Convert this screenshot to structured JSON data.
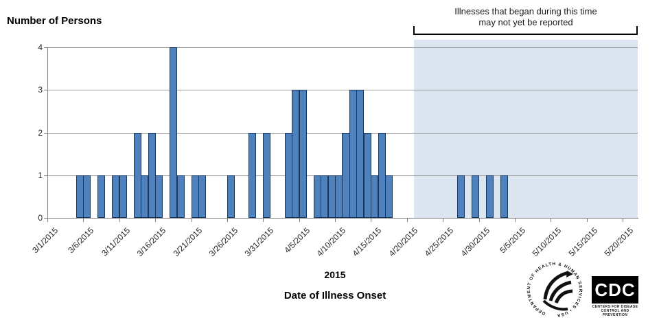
{
  "y_axis_title": "Number of Persons",
  "annotation": {
    "line1": "Illnesses that began during this time",
    "line2": "may not yet be reported"
  },
  "x_axis": {
    "tick_labels": [
      "3/1/2015",
      "3/6/2015",
      "3/11/2015",
      "3/16/2015",
      "3/21/2015",
      "3/26/2015",
      "3/31/2015",
      "4/5/2015",
      "4/10/2015",
      "4/15/2015",
      "4/20/2015",
      "4/25/2015",
      "4/30/2015",
      "5/5/2015",
      "5/10/2015",
      "5/15/2015",
      "5/20/2015"
    ],
    "year_label": "2015",
    "title": "Date of Illness Onset"
  },
  "y_axis": {
    "tick_labels": [
      "0",
      "1",
      "2",
      "3",
      "4"
    ]
  },
  "footer": {
    "cdc_logo_text": "CDC",
    "cdc_caption_line1": "CENTERS FOR DISEASE",
    "cdc_caption_line2": "CONTROL AND PREVENTION",
    "hhs_seal_text": "DEPARTMENT OF HEALTH & HUMAN SERVICES • USA"
  },
  "colors": {
    "bar_fill": "#4F81BD",
    "bar_border": "#17375E",
    "shaded_region": "#DCE6F1",
    "gridline": "#999999",
    "axis": "#808080",
    "tick_label": "#262626"
  },
  "chart_data": {
    "type": "bar",
    "title": "",
    "xlabel": "Date of Illness Onset",
    "ylabel": "Number of Persons",
    "x_start_date": "3/1/2015",
    "x_end_date": "5/22/2015",
    "ylim": [
      0,
      4
    ],
    "grid": true,
    "bar_unit": "1 bar = 1 day",
    "bars": [
      {
        "date": "3/5/2015",
        "value": 1
      },
      {
        "date": "3/6/2015",
        "value": 1
      },
      {
        "date": "3/8/2015",
        "value": 1
      },
      {
        "date": "3/10/2015",
        "value": 1
      },
      {
        "date": "3/11/2015",
        "value": 1
      },
      {
        "date": "3/13/2015",
        "value": 2
      },
      {
        "date": "3/14/2015",
        "value": 1
      },
      {
        "date": "3/15/2015",
        "value": 2
      },
      {
        "date": "3/16/2015",
        "value": 1
      },
      {
        "date": "3/18/2015",
        "value": 4
      },
      {
        "date": "3/19/2015",
        "value": 1
      },
      {
        "date": "3/21/2015",
        "value": 1
      },
      {
        "date": "3/22/2015",
        "value": 1
      },
      {
        "date": "3/26/2015",
        "value": 1
      },
      {
        "date": "3/29/2015",
        "value": 2
      },
      {
        "date": "3/31/2015",
        "value": 2
      },
      {
        "date": "4/3/2015",
        "value": 2
      },
      {
        "date": "4/4/2015",
        "value": 3
      },
      {
        "date": "4/5/2015",
        "value": 3
      },
      {
        "date": "4/7/2015",
        "value": 1
      },
      {
        "date": "4/8/2015",
        "value": 1
      },
      {
        "date": "4/9/2015",
        "value": 1
      },
      {
        "date": "4/10/2015",
        "value": 1
      },
      {
        "date": "4/11/2015",
        "value": 2
      },
      {
        "date": "4/12/2015",
        "value": 3
      },
      {
        "date": "4/13/2015",
        "value": 3
      },
      {
        "date": "4/14/2015",
        "value": 2
      },
      {
        "date": "4/15/2015",
        "value": 1
      },
      {
        "date": "4/16/2015",
        "value": 2
      },
      {
        "date": "4/17/2015",
        "value": 1
      },
      {
        "date": "4/27/2015",
        "value": 1
      },
      {
        "date": "4/29/2015",
        "value": 1
      },
      {
        "date": "5/1/2015",
        "value": 1
      },
      {
        "date": "5/3/2015",
        "value": 1
      }
    ],
    "shaded_region": {
      "start_date": "4/21/2015",
      "end_date": "5/22/2015",
      "note": "Illnesses that began during this time may not yet be reported"
    }
  }
}
